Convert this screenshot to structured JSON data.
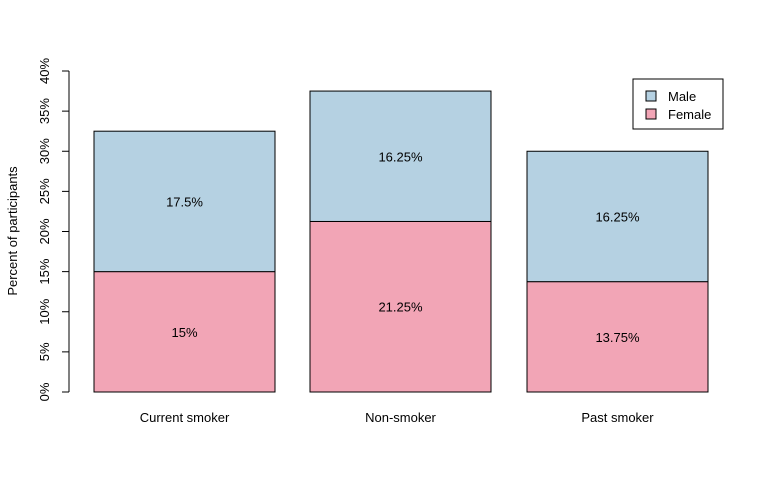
{
  "chart_data": {
    "type": "bar",
    "stacked": true,
    "categories": [
      "Current smoker",
      "Non-smoker",
      "Past smoker"
    ],
    "series": [
      {
        "name": "Female",
        "values": [
          15,
          21.25,
          13.75
        ],
        "color": "#f2a5b6",
        "labels": [
          "15%",
          "21.25%",
          "13.75%"
        ]
      },
      {
        "name": "Male",
        "values": [
          17.5,
          16.25,
          16.25
        ],
        "color": "#b5d1e2",
        "labels": [
          "17.5%",
          "16.25%",
          "16.25%"
        ]
      }
    ],
    "legend_order": [
      "Male",
      "Female"
    ],
    "legend_position": "top-right",
    "ylabel": "Percent of participants",
    "xlabel": "",
    "title": "",
    "ylim": [
      0,
      40
    ],
    "yticks": [
      0,
      5,
      10,
      15,
      20,
      25,
      30,
      35,
      40
    ],
    "ytick_labels": [
      "0%",
      "5%",
      "10%",
      "15%",
      "20%",
      "25%",
      "30%",
      "35%",
      "40%"
    ],
    "grid": false
  }
}
